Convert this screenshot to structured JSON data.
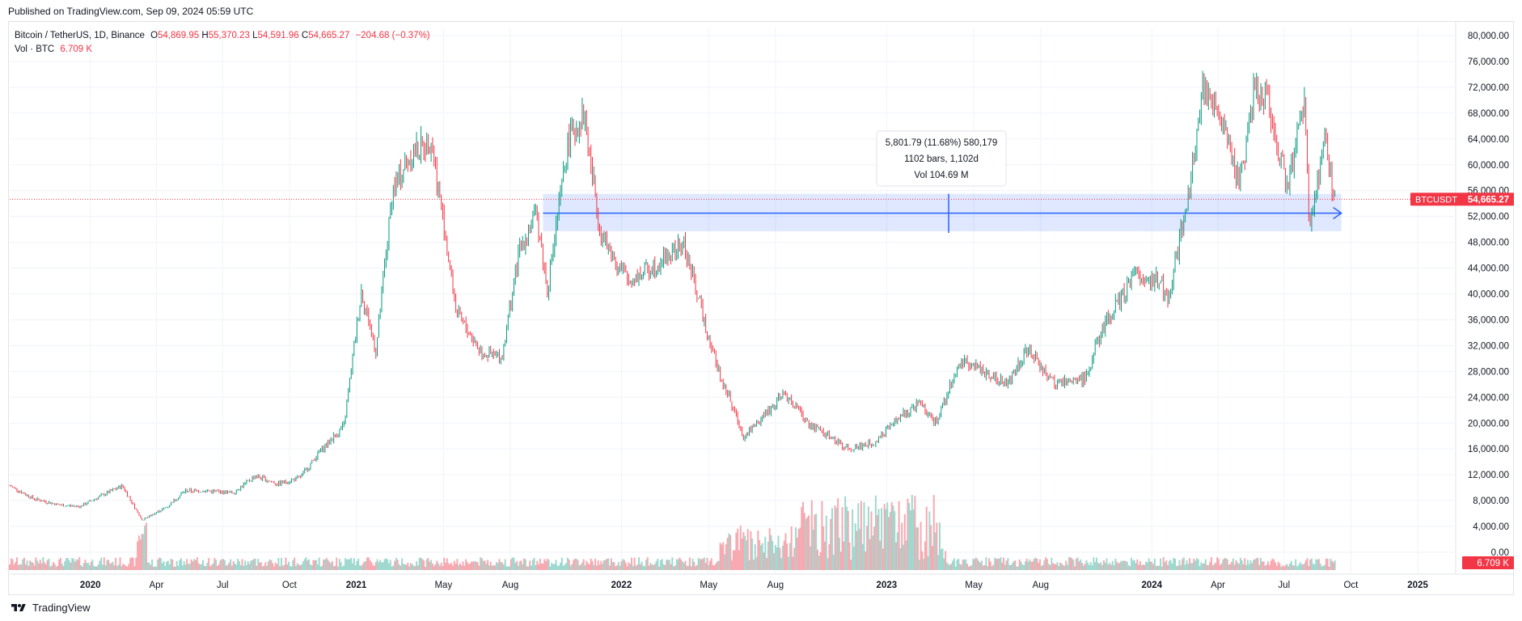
{
  "header": {
    "published": "Published on TradingView.com, Sep 09, 2024 05:59 UTC"
  },
  "legend": {
    "symbol": "Bitcoin / TetherUS, 1D, Binance",
    "open_label": "O",
    "open": "54,869.95",
    "high_label": "H",
    "high": "55,370.23",
    "low_label": "L",
    "low": "54,591.96",
    "close_label": "C",
    "close": "54,665.27",
    "change": "−204.68 (−0.37%)",
    "vol_label": "Vol · BTC",
    "vol_value": "6.709 K"
  },
  "measure": {
    "line1": "5,801.79 (11.68%) 580,179",
    "line2": "1102 bars, 1,102d",
    "line3": "Vol 104.69 M"
  },
  "price_tag": {
    "symbol": "BTCUSDT",
    "price": "54,665.27"
  },
  "vol_tag": "6.709 K",
  "footer": {
    "brand": "TradingView"
  },
  "colors": {
    "up": "#089981",
    "down": "#f23645",
    "accent": "#2962ff"
  },
  "chart_data": {
    "type": "line",
    "title": "Bitcoin / TetherUS, 1D, Binance",
    "xlabel": "",
    "ylabel": "",
    "y_ticks": [
      "80,000.00",
      "76,000.00",
      "72,000.00",
      "68,000.00",
      "64,000.00",
      "60,000.00",
      "56,000.00",
      "52,000.00",
      "48,000.00",
      "44,000.00",
      "40,000.00",
      "36,000.00",
      "32,000.00",
      "28,000.00",
      "24,000.00",
      "20,000.00",
      "16,000.00",
      "12,000.00",
      "8,000.00",
      "4,000.00",
      "0.00"
    ],
    "ylim": [
      0,
      80000
    ],
    "x_ticks": [
      "2020",
      "Apr",
      "Jul",
      "Oct",
      "2021",
      "May",
      "Aug",
      "2022",
      "May",
      "Aug",
      "2023",
      "May",
      "Aug",
      "2024",
      "Apr",
      "Jul",
      "Oct",
      "2025"
    ],
    "x_tick_dates": [
      "2020-01-01",
      "2020-04-01",
      "2020-07-01",
      "2020-10-01",
      "2021-01-01",
      "2021-05-01",
      "2021-08-01",
      "2022-01-01",
      "2022-05-01",
      "2022-08-01",
      "2023-01-01",
      "2023-05-01",
      "2023-08-01",
      "2024-01-01",
      "2024-04-01",
      "2024-07-01",
      "2024-10-01",
      "2025-01-01"
    ],
    "xlim": [
      "2019-09-12",
      "2025-02-20"
    ],
    "series": [
      {
        "name": "",
        "x": [
          "2019-09-12",
          "2019-10-15",
          "2019-11-20",
          "2019-12-18",
          "2020-01-15",
          "2020-02-14",
          "2020-03-12",
          "2020-04-15",
          "2020-05-10",
          "2020-06-10",
          "2020-07-15",
          "2020-08-15",
          "2020-09-15",
          "2020-10-15",
          "2020-11-15",
          "2020-12-15",
          "2021-01-08",
          "2021-01-28",
          "2021-02-20",
          "2021-03-13",
          "2021-04-14",
          "2021-05-19",
          "2021-06-22",
          "2021-07-20",
          "2021-08-14",
          "2021-09-06",
          "2021-09-21",
          "2021-10-20",
          "2021-11-10",
          "2021-12-04",
          "2022-01-10",
          "2022-02-10",
          "2022-03-28",
          "2022-05-12",
          "2022-06-18",
          "2022-08-14",
          "2022-09-15",
          "2022-11-09",
          "2022-12-15",
          "2023-01-20",
          "2023-02-15",
          "2023-03-10",
          "2023-04-14",
          "2023-06-15",
          "2023-07-13",
          "2023-08-20",
          "2023-10-01",
          "2023-10-25",
          "2023-12-08",
          "2024-01-12",
          "2024-01-23",
          "2024-02-15",
          "2024-03-14",
          "2024-04-15",
          "2024-05-01",
          "2024-05-21",
          "2024-06-07",
          "2024-07-05",
          "2024-07-29",
          "2024-08-05",
          "2024-08-25",
          "2024-09-09"
        ],
        "values": [
          10300,
          8300,
          7300,
          7100,
          8700,
          10300,
          5000,
          7000,
          9500,
          9500,
          9200,
          11800,
          10600,
          11500,
          16000,
          19500,
          40500,
          31000,
          56000,
          61000,
          64000,
          37000,
          31000,
          30000,
          47000,
          52500,
          40500,
          64000,
          68000,
          49000,
          42000,
          44000,
          47500,
          29000,
          18000,
          24500,
          20000,
          16000,
          17000,
          21000,
          23000,
          20000,
          30000,
          26000,
          31500,
          26000,
          27000,
          34500,
          43000,
          42000,
          39000,
          52000,
          73000,
          63000,
          57000,
          71500,
          71000,
          56500,
          70000,
          49000,
          64000,
          54665
        ]
      }
    ],
    "volume_axis_note": "volume histogram shown at bottom of pane",
    "measure_range": {
      "from_date": "2021-09-15",
      "to_date": "2024-09-09",
      "low": 49700,
      "high": 55500,
      "arrow_y": 52500
    }
  }
}
